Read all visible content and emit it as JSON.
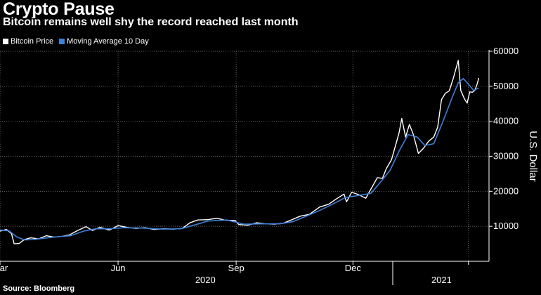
{
  "header": {
    "title": "Crypto Pause",
    "subtitle": "Bitcoin remains well shy the record reached last month"
  },
  "footer": {
    "source": "Source: Bloomberg"
  },
  "colors": {
    "background": "#000000",
    "bitcoin_price": "#ffffff",
    "moving_average": "#3d7fd9",
    "grid": "#666666",
    "text": "#ffffff"
  },
  "chart_data": {
    "type": "line",
    "title": "Crypto Pause",
    "subtitle": "Bitcoin remains well shy the record reached last month",
    "ylabel": "U.S. Dollar",
    "ylim": [
      0,
      60000
    ],
    "yticks": [
      10000,
      20000,
      30000,
      40000,
      50000,
      60000
    ],
    "ytick_labels": [
      "10000",
      "20000",
      "30000",
      "40000",
      "50000",
      "60000"
    ],
    "y_axis_side": "right",
    "xlim": [
      "2020-03-01",
      "2021-03-17"
    ],
    "x_month_ticks": [
      "2020-03-01",
      "2020-06-01",
      "2020-09-01",
      "2020-12-01",
      "2021-03-01"
    ],
    "x_month_labels": [
      {
        "label": "Mar",
        "date": "2020-03-01"
      },
      {
        "label": "Jun",
        "date": "2020-06-01"
      },
      {
        "label": "Sep",
        "date": "2020-09-01"
      },
      {
        "label": "Dec",
        "date": "2020-12-01"
      }
    ],
    "x_year_separator": "2021-01-01",
    "x_year_labels": [
      {
        "label": "2020",
        "date": "2020-08-08"
      },
      {
        "label": "2021",
        "date": "2021-02-08"
      }
    ],
    "grid": true,
    "legend_placement": "top-left",
    "series": [
      {
        "name": "Bitcoin Price",
        "color": "#ffffff",
        "points": [
          [
            "2020-03-01",
            8600
          ],
          [
            "2020-03-06",
            9100
          ],
          [
            "2020-03-10",
            7900
          ],
          [
            "2020-03-12",
            5000
          ],
          [
            "2020-03-16",
            5100
          ],
          [
            "2020-03-20",
            6200
          ],
          [
            "2020-03-25",
            6700
          ],
          [
            "2020-03-31",
            6400
          ],
          [
            "2020-04-06",
            7300
          ],
          [
            "2020-04-12",
            6900
          ],
          [
            "2020-04-18",
            7100
          ],
          [
            "2020-04-24",
            7500
          ],
          [
            "2020-04-30",
            8700
          ],
          [
            "2020-05-07",
            9900
          ],
          [
            "2020-05-12",
            8800
          ],
          [
            "2020-05-18",
            9700
          ],
          [
            "2020-05-25",
            8900
          ],
          [
            "2020-06-01",
            10200
          ],
          [
            "2020-06-08",
            9700
          ],
          [
            "2020-06-15",
            9400
          ],
          [
            "2020-06-22",
            9600
          ],
          [
            "2020-06-29",
            9100
          ],
          [
            "2020-07-07",
            9300
          ],
          [
            "2020-07-14",
            9200
          ],
          [
            "2020-07-21",
            9400
          ],
          [
            "2020-07-27",
            11000
          ],
          [
            "2020-08-02",
            11800
          ],
          [
            "2020-08-10",
            11900
          ],
          [
            "2020-08-17",
            12300
          ],
          [
            "2020-08-24",
            11700
          ],
          [
            "2020-08-31",
            11700
          ],
          [
            "2020-09-03",
            10500
          ],
          [
            "2020-09-10",
            10300
          ],
          [
            "2020-09-17",
            11000
          ],
          [
            "2020-09-24",
            10700
          ],
          [
            "2020-10-01",
            10600
          ],
          [
            "2020-10-08",
            10900
          ],
          [
            "2020-10-12",
            11500
          ],
          [
            "2020-10-21",
            12900
          ],
          [
            "2020-10-28",
            13400
          ],
          [
            "2020-11-05",
            15500
          ],
          [
            "2020-11-12",
            16300
          ],
          [
            "2020-11-18",
            17800
          ],
          [
            "2020-11-24",
            19200
          ],
          [
            "2020-11-26",
            17000
          ],
          [
            "2020-11-30",
            19700
          ],
          [
            "2020-12-05",
            19100
          ],
          [
            "2020-12-11",
            18000
          ],
          [
            "2020-12-16",
            21300
          ],
          [
            "2020-12-20",
            23900
          ],
          [
            "2020-12-24",
            23700
          ],
          [
            "2020-12-27",
            26500
          ],
          [
            "2020-12-31",
            29000
          ],
          [
            "2021-01-03",
            32800
          ],
          [
            "2021-01-06",
            36800
          ],
          [
            "2021-01-08",
            40800
          ],
          [
            "2021-01-11",
            35500
          ],
          [
            "2021-01-14",
            39100
          ],
          [
            "2021-01-17",
            36300
          ],
          [
            "2021-01-21",
            30800
          ],
          [
            "2021-01-25",
            32300
          ],
          [
            "2021-01-29",
            34300
          ],
          [
            "2021-02-02",
            35500
          ],
          [
            "2021-02-05",
            38300
          ],
          [
            "2021-02-08",
            46200
          ],
          [
            "2021-02-11",
            48000
          ],
          [
            "2021-02-14",
            48700
          ],
          [
            "2021-02-17",
            52100
          ],
          [
            "2021-02-21",
            57400
          ],
          [
            "2021-02-23",
            48800
          ],
          [
            "2021-02-26",
            46300
          ],
          [
            "2021-02-28",
            45200
          ],
          [
            "2021-03-02",
            48400
          ],
          [
            "2021-03-04",
            48300
          ],
          [
            "2021-03-06",
            48800
          ],
          [
            "2021-03-08",
            50900
          ],
          [
            "2021-03-09",
            52400
          ]
        ]
      },
      {
        "name": "Moving Average 10 Day",
        "color": "#3d7fd9",
        "points": [
          [
            "2020-03-01",
            8900
          ],
          [
            "2020-03-08",
            8700
          ],
          [
            "2020-03-14",
            7000
          ],
          [
            "2020-03-20",
            6100
          ],
          [
            "2020-03-27",
            6200
          ],
          [
            "2020-04-05",
            6600
          ],
          [
            "2020-04-15",
            7000
          ],
          [
            "2020-04-25",
            7300
          ],
          [
            "2020-05-05",
            8600
          ],
          [
            "2020-05-15",
            9300
          ],
          [
            "2020-05-25",
            9300
          ],
          [
            "2020-06-05",
            9600
          ],
          [
            "2020-06-20",
            9500
          ],
          [
            "2020-07-05",
            9200
          ],
          [
            "2020-07-20",
            9300
          ],
          [
            "2020-07-30",
            10300
          ],
          [
            "2020-08-10",
            11500
          ],
          [
            "2020-08-25",
            11800
          ],
          [
            "2020-09-07",
            10600
          ],
          [
            "2020-09-20",
            10700
          ],
          [
            "2020-10-05",
            10700
          ],
          [
            "2020-10-15",
            11300
          ],
          [
            "2020-10-25",
            12800
          ],
          [
            "2020-11-05",
            14500
          ],
          [
            "2020-11-15",
            16300
          ],
          [
            "2020-11-25",
            18200
          ],
          [
            "2020-12-05",
            18800
          ],
          [
            "2020-12-15",
            19400
          ],
          [
            "2020-12-22",
            22400
          ],
          [
            "2020-12-30",
            26000
          ],
          [
            "2021-01-06",
            31500
          ],
          [
            "2021-01-13",
            36200
          ],
          [
            "2021-01-20",
            35500
          ],
          [
            "2021-01-26",
            33100
          ],
          [
            "2021-02-02",
            33600
          ],
          [
            "2021-02-09",
            39800
          ],
          [
            "2021-02-16",
            46500
          ],
          [
            "2021-02-21",
            51000
          ],
          [
            "2021-02-25",
            52200
          ],
          [
            "2021-03-01",
            50600
          ],
          [
            "2021-03-05",
            48800
          ],
          [
            "2021-03-09",
            49500
          ]
        ]
      }
    ]
  }
}
